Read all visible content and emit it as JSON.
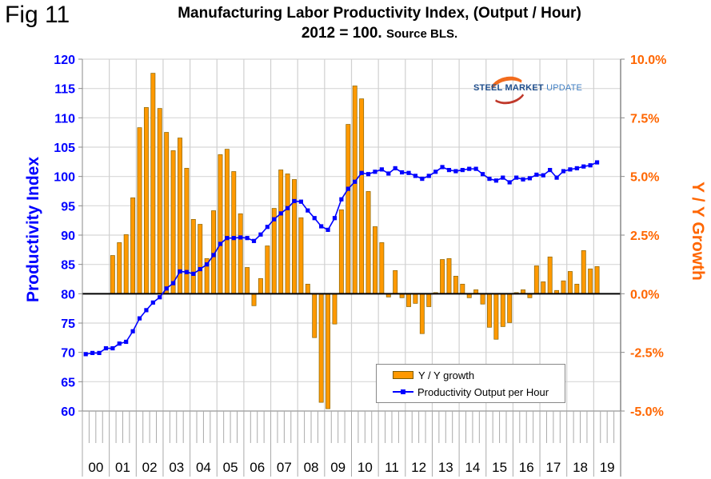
{
  "figure": {
    "label": "Fig 11",
    "title_line1": "Manufacturing Labor Productivity Index, (Output / Hour)",
    "title_line2_main": "2012 = 100.",
    "title_line2_source": "Source BLS.",
    "logo": {
      "part1": "STEEL",
      "part2": "MARKET",
      "part3": "UPDATE"
    },
    "colors": {
      "bar": "#ff9900",
      "bar_border": "#8a6500",
      "line": "#0000ff",
      "left_axis": "#0000ff",
      "right_axis": "#ff6600",
      "zero_line": "#000000"
    }
  },
  "chart_data": {
    "type": "bar+line",
    "title": "Manufacturing Labor Productivity Index, (Output / Hour) 2012 = 100. Source BLS.",
    "xlabel": "",
    "ylabel_left": "Productivity Index",
    "ylabel_right": "Y / Y Growth",
    "ylim_left": [
      60,
      120
    ],
    "yticks_left": [
      "60",
      "65",
      "70",
      "75",
      "80",
      "85",
      "90",
      "95",
      "100",
      "105",
      "110",
      "115",
      "120"
    ],
    "ylim_right": [
      -5.0,
      10.0
    ],
    "yticks_right": [
      "-5.0%",
      "-2.5%",
      "0.0%",
      "2.5%",
      "5.0%",
      "7.5%",
      "10.0%"
    ],
    "grid": true,
    "legend_position": "bottom-center",
    "x_categories": [
      "00",
      "01",
      "02",
      "03",
      "04",
      "05",
      "06",
      "07",
      "08",
      "09",
      "10",
      "11",
      "12",
      "13",
      "14",
      "15",
      "16",
      "17",
      "18",
      "19"
    ],
    "x_note": "quarterly, 2000Q1 to 2019Q1",
    "series": [
      {
        "name": "Y / Y growth",
        "type": "bar",
        "axis": "right",
        "unit": "%",
        "start": "2001Q1",
        "values": [
          1.63,
          2.18,
          2.52,
          4.09,
          7.08,
          7.94,
          9.4,
          7.9,
          6.88,
          6.1,
          6.64,
          5.35,
          3.17,
          2.96,
          1.5,
          3.54,
          5.93,
          6.16,
          5.21,
          3.41,
          1.12,
          -0.51,
          0.65,
          2.04,
          3.64,
          5.28,
          5.11,
          4.87,
          3.24,
          0.41,
          -1.87,
          -4.63,
          -4.9,
          -1.29,
          3.58,
          7.22,
          8.86,
          8.31,
          4.36,
          2.86,
          2.18,
          -0.14,
          0.99,
          -0.17,
          -0.55,
          -0.41,
          -1.7,
          -0.55,
          0.05,
          1.46,
          1.5,
          0.75,
          0.41,
          -0.17,
          0.17,
          -0.44,
          -1.43,
          -1.94,
          -1.4,
          -1.23,
          0.05,
          0.17,
          -0.17,
          1.19,
          0.51,
          1.57,
          0.14,
          0.55,
          0.95,
          0.41,
          1.84,
          1.06,
          1.16
        ]
      },
      {
        "name": "Productivity Output per Hour",
        "type": "line",
        "axis": "left",
        "start": "2000Q1",
        "values": [
          69.7,
          69.9,
          69.9,
          70.7,
          70.7,
          71.5,
          71.8,
          73.6,
          75.8,
          77.2,
          78.5,
          79.4,
          80.9,
          81.8,
          83.8,
          83.7,
          83.4,
          84.2,
          85.0,
          86.6,
          88.5,
          89.5,
          89.5,
          89.6,
          89.5,
          89.0,
          90.1,
          91.4,
          92.7,
          93.7,
          94.6,
          95.8,
          95.7,
          94.2,
          92.9,
          91.5,
          90.9,
          92.9,
          96.1,
          97.9,
          99.1,
          100.6,
          100.4,
          100.8,
          101.2,
          100.5,
          101.4,
          100.7,
          100.6,
          100.1,
          99.6,
          100.1,
          100.8,
          101.6,
          101.1,
          100.9,
          101.1,
          101.3,
          101.3,
          100.4,
          99.6,
          99.3,
          99.8,
          99.0,
          99.8,
          99.5,
          99.7,
          100.3,
          100.2,
          101.1,
          99.8,
          100.9,
          101.2,
          101.4,
          101.7,
          101.9,
          102.4
        ]
      }
    ]
  }
}
